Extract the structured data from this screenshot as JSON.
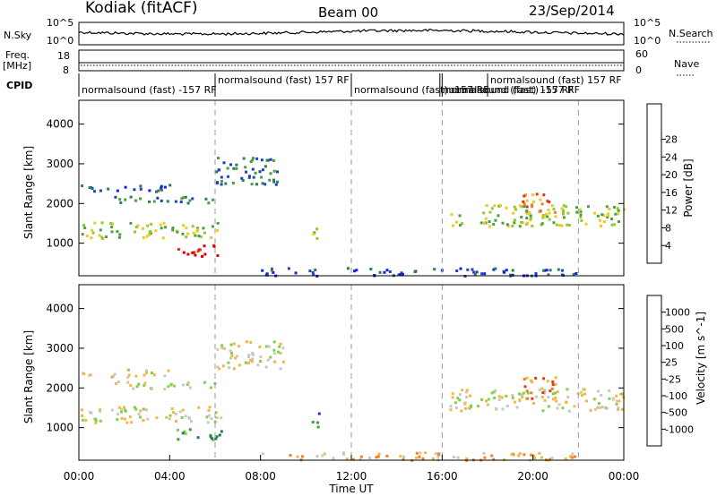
{
  "header": {
    "station": "Kodiak (fitACF)",
    "beam": "Beam 00",
    "date": "23/Sep/2014"
  },
  "summary_panels": {
    "nsky_label": "N.Sky",
    "nsearch_label": "N.Search",
    "nsky_ticks": [
      "10^5",
      "10^0"
    ],
    "nsearch_ticks": [
      "10^5",
      "10^0"
    ],
    "freq_label": "Freq.",
    "freq_unit": "[MHz]",
    "freq_ticks": [
      "18",
      "8"
    ],
    "nave_label": "Nave",
    "nave_ticks": [
      "60",
      "0"
    ],
    "cpid_label": "CPID"
  },
  "cpid_segments": [
    {
      "text": "normalsound (fast) -157 RF",
      "start_hour": 0.0,
      "row": 1
    },
    {
      "text": "normalsound (fast) 157 RF",
      "start_hour": 6.0,
      "row": 0
    },
    {
      "text": "normalsound (fast) -157 RF",
      "start_hour": 12.0,
      "row": 1
    },
    {
      "text": "normalsound (fast) 157 RF",
      "start_hour": 15.9,
      "row": 1
    },
    {
      "text": "normalsound (fast) -157 RF",
      "start_hour": 16.0,
      "row": 1
    },
    {
      "text": "normalsound (fast) 157 RF",
      "start_hour": 18.0,
      "row": 0
    }
  ],
  "chart_data": [
    {
      "type": "heatmap",
      "name": "power",
      "ylabel": "Slant Range [km]",
      "xlim_hours": [
        0,
        24
      ],
      "ylim": [
        180,
        4600
      ],
      "yticks": [
        1000,
        2000,
        3000,
        4000
      ],
      "colorbar": {
        "label": "Power [dB]",
        "ticks": [
          "4",
          "8",
          "12",
          "16",
          "20",
          "24",
          "28"
        ],
        "colors": [
          "#1020e8",
          "#2040c0",
          "#2c7a5a",
          "#4aa040",
          "#90c830",
          "#f0c820",
          "#f08020",
          "#e83010",
          "#e00000"
        ]
      },
      "dashed_times_hours": [
        6,
        12,
        16,
        22
      ],
      "echo_regions": [
        {
          "t0": 0.0,
          "t1": 6.3,
          "r0": 1150,
          "r1": 1550,
          "level": 4
        },
        {
          "t0": 4.3,
          "t1": 6.3,
          "r0": 700,
          "r1": 1000,
          "level": 8
        },
        {
          "t0": 0.0,
          "t1": 4.0,
          "r0": 2300,
          "r1": 2500,
          "level": 1
        },
        {
          "t0": 1.5,
          "t1": 6.0,
          "r0": 2000,
          "r1": 2200,
          "level": 2
        },
        {
          "t0": 6.0,
          "t1": 9.0,
          "r0": 2500,
          "r1": 3200,
          "level": 2
        },
        {
          "t0": 10.2,
          "t1": 10.6,
          "r0": 1000,
          "r1": 1400,
          "level": 4
        },
        {
          "t0": 16.3,
          "t1": 24.0,
          "r0": 1450,
          "r1": 2000,
          "level": 4
        },
        {
          "t0": 19.5,
          "t1": 21.0,
          "r0": 1700,
          "r1": 2300,
          "level": 6
        },
        {
          "t0": 8.0,
          "t1": 22.0,
          "r0": 200,
          "r1": 400,
          "level": 1
        }
      ]
    },
    {
      "type": "heatmap",
      "name": "velocity",
      "ylabel": "Slant Range [km]",
      "xlabel": "Time UT",
      "xlim_hours": [
        0,
        24
      ],
      "ylim": [
        180,
        4600
      ],
      "yticks": [
        1000,
        2000,
        3000,
        4000
      ],
      "xticks": [
        "00:00",
        "04:00",
        "08:00",
        "12:00",
        "16:00",
        "20:00",
        "00:00"
      ],
      "colorbar": {
        "label": "Velocity [m s^-1]",
        "ticks": [
          "1000",
          "500",
          "100",
          "25",
          "-25",
          "-100",
          "-500",
          "-1000"
        ],
        "colors": [
          "#1838c0",
          "#2c7060",
          "#38a038",
          "#80d048",
          "#c8c8c0",
          "#f0b840",
          "#f08020",
          "#e83818",
          "#e00000"
        ]
      },
      "dashed_times_hours": [
        6,
        12,
        16,
        22
      ],
      "echo_regions": [
        {
          "t0": 0.0,
          "t1": 6.3,
          "r0": 1150,
          "r1": 1550,
          "level": 4
        },
        {
          "t0": 4.3,
          "t1": 6.3,
          "r0": 700,
          "r1": 1000,
          "level": 2
        },
        {
          "t0": 0.0,
          "t1": 4.0,
          "r0": 2300,
          "r1": 2500,
          "level": 4
        },
        {
          "t0": 1.5,
          "t1": 6.0,
          "r0": 2000,
          "r1": 2200,
          "level": 4
        },
        {
          "t0": 6.0,
          "t1": 9.0,
          "r0": 2500,
          "r1": 3200,
          "level": 4
        },
        {
          "t0": 10.2,
          "t1": 10.6,
          "r0": 1000,
          "r1": 1400,
          "level": 1
        },
        {
          "t0": 16.3,
          "t1": 24.0,
          "r0": 1450,
          "r1": 2000,
          "level": 4
        },
        {
          "t0": 19.5,
          "t1": 21.0,
          "r0": 1700,
          "r1": 2300,
          "level": 6
        },
        {
          "t0": 8.0,
          "t1": 22.0,
          "r0": 200,
          "r1": 400,
          "level": 5
        }
      ]
    }
  ]
}
